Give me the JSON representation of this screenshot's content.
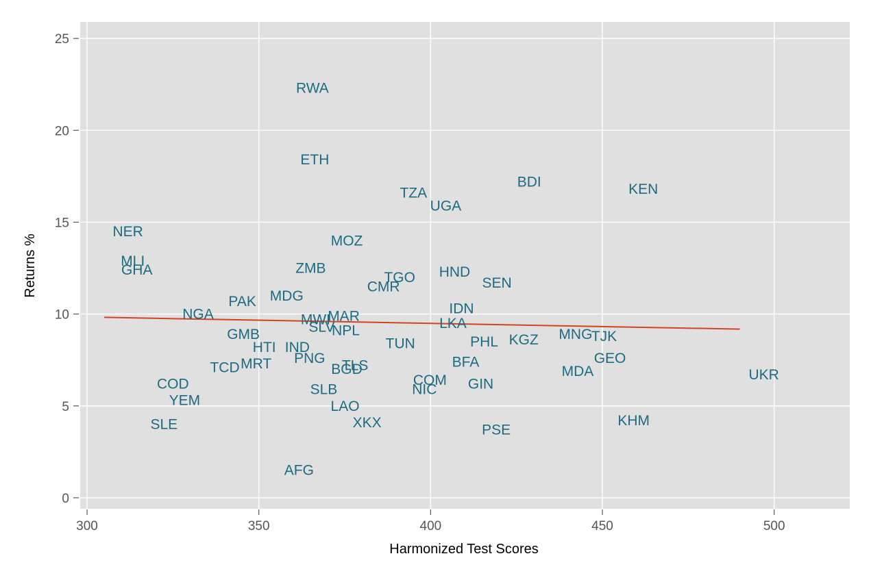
{
  "chart_data": {
    "type": "scatter",
    "title": "",
    "xlabel": "Harmonized Test Scores",
    "ylabel": "Returns %",
    "xlim": [
      298,
      522
    ],
    "ylim": [
      -0.6,
      25.9
    ],
    "xticks": [
      300,
      350,
      400,
      450,
      500
    ],
    "yticks": [
      0,
      5,
      10,
      15,
      20,
      25
    ],
    "grid": true,
    "legend": "none",
    "point_style": "text labels",
    "colors": {
      "panel_background": "#e0e0e0",
      "gridline": "#ffffff",
      "label": "#1c6b80",
      "fit_line": "#d4441c",
      "tick_label": "#555555"
    },
    "points": [
      {
        "label": "RWA",
        "x": 365.6,
        "y": 22.3
      },
      {
        "label": "ETH",
        "x": 366.3,
        "y": 18.4
      },
      {
        "label": "BDI",
        "x": 428.7,
        "y": 17.2
      },
      {
        "label": "KEN",
        "x": 461.9,
        "y": 16.8
      },
      {
        "label": "TZA",
        "x": 395.0,
        "y": 16.6
      },
      {
        "label": "UGA",
        "x": 404.4,
        "y": 15.9
      },
      {
        "label": "NER",
        "x": 311.9,
        "y": 14.5
      },
      {
        "label": "MOZ",
        "x": 375.6,
        "y": 14.0
      },
      {
        "label": "MLI",
        "x": 313.3,
        "y": 12.9
      },
      {
        "label": "GHA",
        "x": 314.5,
        "y": 12.4
      },
      {
        "label": "ZMB",
        "x": 365.1,
        "y": 12.5
      },
      {
        "label": "HND",
        "x": 407.0,
        "y": 12.3
      },
      {
        "label": "TGO",
        "x": 391.0,
        "y": 12.0
      },
      {
        "label": "SEN",
        "x": 419.3,
        "y": 11.7
      },
      {
        "label": "CMR",
        "x": 386.3,
        "y": 11.5
      },
      {
        "label": "MDG",
        "x": 358.1,
        "y": 11.0
      },
      {
        "label": "PAK",
        "x": 345.2,
        "y": 10.7
      },
      {
        "label": "IDN",
        "x": 409.0,
        "y": 10.3
      },
      {
        "label": "NGA",
        "x": 332.3,
        "y": 10.0
      },
      {
        "label": "MAR",
        "x": 374.7,
        "y": 9.9
      },
      {
        "label": "MWI",
        "x": 366.5,
        "y": 9.7
      },
      {
        "label": "LKA",
        "x": 406.5,
        "y": 9.5
      },
      {
        "label": "SLV",
        "x": 368.3,
        "y": 9.3
      },
      {
        "label": "NPL",
        "x": 375.3,
        "y": 9.1
      },
      {
        "label": "GMB",
        "x": 345.5,
        "y": 8.9
      },
      {
        "label": "MNG",
        "x": 442.2,
        "y": 8.9
      },
      {
        "label": "TJK",
        "x": 450.5,
        "y": 8.8
      },
      {
        "label": "PHL",
        "x": 415.6,
        "y": 8.5
      },
      {
        "label": "KGZ",
        "x": 427.1,
        "y": 8.6
      },
      {
        "label": "TUN",
        "x": 391.2,
        "y": 8.4
      },
      {
        "label": "HTI",
        "x": 351.6,
        "y": 8.2
      },
      {
        "label": "IND",
        "x": 361.2,
        "y": 8.2
      },
      {
        "label": "PNG",
        "x": 364.8,
        "y": 7.6
      },
      {
        "label": "GEO",
        "x": 452.2,
        "y": 7.6
      },
      {
        "label": "MRT",
        "x": 349.2,
        "y": 7.3
      },
      {
        "label": "BFA",
        "x": 410.2,
        "y": 7.4
      },
      {
        "label": "TCD",
        "x": 340.1,
        "y": 7.1
      },
      {
        "label": "TLS",
        "x": 378.0,
        "y": 7.2
      },
      {
        "label": "BGD",
        "x": 375.6,
        "y": 7.0
      },
      {
        "label": "MDA",
        "x": 442.8,
        "y": 6.9
      },
      {
        "label": "UKR",
        "x": 497.0,
        "y": 6.7
      },
      {
        "label": "COM",
        "x": 399.8,
        "y": 6.4
      },
      {
        "label": "COD",
        "x": 325.0,
        "y": 6.2
      },
      {
        "label": "GIN",
        "x": 414.6,
        "y": 6.2
      },
      {
        "label": "NIC",
        "x": 398.2,
        "y": 5.9
      },
      {
        "label": "SLB",
        "x": 368.9,
        "y": 5.9
      },
      {
        "label": "YEM",
        "x": 328.4,
        "y": 5.3
      },
      {
        "label": "LAO",
        "x": 375.1,
        "y": 5.0
      },
      {
        "label": "KHM",
        "x": 459.1,
        "y": 4.2
      },
      {
        "label": "XKX",
        "x": 381.5,
        "y": 4.1
      },
      {
        "label": "SLE",
        "x": 322.4,
        "y": 4.0
      },
      {
        "label": "PSE",
        "x": 419.1,
        "y": 3.7
      },
      {
        "label": "AFG",
        "x": 361.7,
        "y": 1.5
      }
    ],
    "fit_line": {
      "x": [
        305,
        490
      ],
      "y": [
        9.82,
        9.18
      ]
    }
  }
}
